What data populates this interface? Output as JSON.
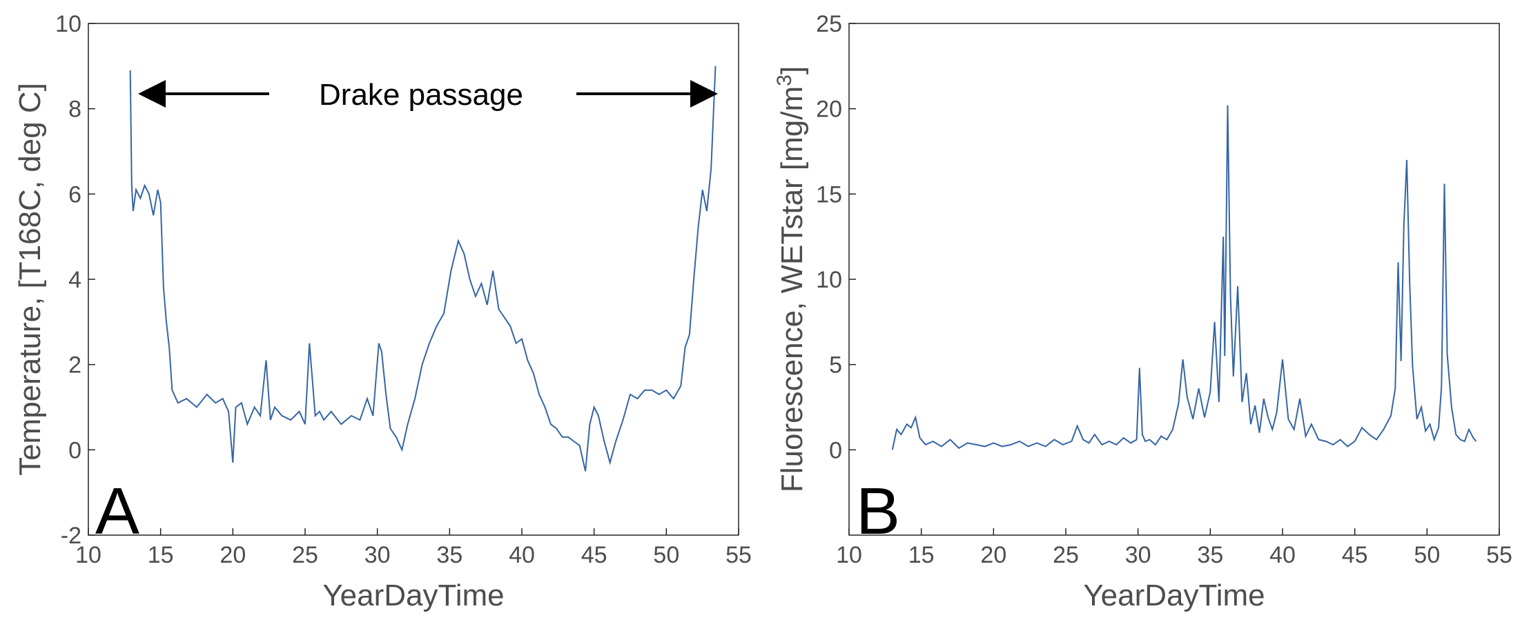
{
  "chart_data": [
    {
      "panel": "A",
      "type": "line",
      "xlabel": "YearDayTime",
      "ylabel": "Temperature, [T168C, deg C]",
      "xlim": [
        10,
        55
      ],
      "ylim": [
        -2,
        10
      ],
      "xticks": [
        "10",
        "15",
        "20",
        "25",
        "30",
        "35",
        "40",
        "45",
        "50",
        "55"
      ],
      "yticks": [
        "-2",
        "0",
        "2",
        "4",
        "6",
        "8",
        "10"
      ],
      "annotation": "Drake passage",
      "line_color": "#3465a4",
      "x": [
        12.9,
        13.0,
        13.1,
        13.3,
        13.6,
        13.9,
        14.2,
        14.5,
        14.8,
        15.0,
        15.2,
        15.4,
        15.6,
        15.8,
        16.2,
        16.8,
        17.5,
        18.2,
        18.8,
        19.3,
        19.7,
        20.0,
        20.2,
        20.6,
        21.0,
        21.5,
        21.9,
        22.3,
        22.6,
        22.9,
        23.4,
        24.0,
        24.6,
        25.0,
        25.3,
        25.7,
        26.0,
        26.3,
        26.8,
        27.5,
        28.2,
        28.8,
        29.3,
        29.7,
        30.1,
        30.3,
        30.6,
        30.9,
        31.3,
        31.7,
        32.1,
        32.6,
        33.1,
        33.6,
        34.1,
        34.6,
        35.1,
        35.6,
        36.0,
        36.4,
        36.8,
        37.2,
        37.6,
        38.0,
        38.4,
        38.8,
        39.2,
        39.6,
        40.0,
        40.4,
        40.8,
        41.2,
        41.6,
        42.0,
        42.4,
        42.8,
        43.2,
        43.6,
        44.0,
        44.4,
        44.7,
        45.0,
        45.3,
        45.7,
        46.1,
        46.5,
        47.0,
        47.5,
        48.0,
        48.5,
        49.0,
        49.5,
        50.0,
        50.5,
        51.0,
        51.3,
        51.6,
        51.9,
        52.2,
        52.5,
        52.8,
        53.1,
        53.4
      ],
      "y": [
        8.9,
        6.2,
        5.6,
        6.1,
        5.9,
        6.2,
        6.0,
        5.5,
        6.1,
        5.8,
        3.8,
        3.0,
        2.4,
        1.4,
        1.1,
        1.2,
        1.0,
        1.3,
        1.1,
        1.2,
        0.9,
        -0.3,
        1.0,
        1.1,
        0.6,
        1.0,
        0.8,
        2.1,
        0.7,
        1.0,
        0.8,
        0.7,
        0.9,
        0.6,
        2.5,
        0.8,
        0.9,
        0.7,
        0.9,
        0.6,
        0.8,
        0.7,
        1.2,
        0.8,
        2.5,
        2.3,
        1.3,
        0.5,
        0.3,
        0.0,
        0.6,
        1.2,
        2.0,
        2.5,
        2.9,
        3.2,
        4.2,
        4.9,
        4.6,
        4.0,
        3.6,
        3.9,
        3.4,
        4.2,
        3.3,
        3.1,
        2.9,
        2.5,
        2.6,
        2.1,
        1.8,
        1.3,
        1.0,
        0.6,
        0.5,
        0.3,
        0.3,
        0.2,
        0.1,
        -0.5,
        0.6,
        1.0,
        0.8,
        0.2,
        -0.3,
        0.2,
        0.7,
        1.3,
        1.2,
        1.4,
        1.4,
        1.3,
        1.4,
        1.2,
        1.5,
        2.4,
        2.7,
        4.0,
        5.2,
        6.1,
        5.6,
        6.6,
        9.0
      ],
      "legend": "none",
      "grid": false
    },
    {
      "panel": "B",
      "type": "line",
      "xlabel": "YearDayTime",
      "ylabel": "Fluorescence, WETstar [mg/m3]",
      "xlim": [
        10,
        55
      ],
      "ylim": [
        -5,
        25
      ],
      "xticks": [
        "10",
        "15",
        "20",
        "25",
        "30",
        "35",
        "40",
        "45",
        "50",
        "55"
      ],
      "yticks": [
        "0",
        "5",
        "10",
        "15",
        "20",
        "25"
      ],
      "line_color": "#3465a4",
      "x": [
        13.0,
        13.3,
        13.6,
        14.0,
        14.3,
        14.6,
        14.9,
        15.3,
        15.8,
        16.4,
        17.0,
        17.6,
        18.2,
        18.8,
        19.4,
        20.0,
        20.6,
        21.2,
        21.8,
        22.4,
        23.0,
        23.6,
        24.2,
        24.8,
        25.4,
        25.8,
        26.2,
        26.6,
        27.0,
        27.5,
        28.0,
        28.5,
        29.0,
        29.5,
        29.9,
        30.1,
        30.3,
        30.5,
        30.8,
        31.2,
        31.6,
        32.0,
        32.4,
        32.8,
        33.1,
        33.4,
        33.8,
        34.2,
        34.6,
        35.0,
        35.3,
        35.6,
        35.9,
        36.0,
        36.2,
        36.4,
        36.6,
        36.9,
        37.2,
        37.5,
        37.8,
        38.1,
        38.4,
        38.7,
        39.0,
        39.3,
        39.6,
        40.0,
        40.4,
        40.8,
        41.2,
        41.6,
        42.0,
        42.5,
        43.0,
        43.5,
        44.0,
        44.5,
        45.0,
        45.5,
        46.0,
        46.5,
        47.0,
        47.5,
        47.8,
        48.0,
        48.2,
        48.4,
        48.6,
        48.8,
        49.0,
        49.3,
        49.6,
        49.9,
        50.2,
        50.5,
        50.8,
        51.0,
        51.2,
        51.4,
        51.7,
        52.0,
        52.3,
        52.6,
        52.9,
        53.2,
        53.4
      ],
      "y": [
        0.0,
        1.2,
        0.9,
        1.5,
        1.3,
        1.9,
        0.7,
        0.3,
        0.5,
        0.2,
        0.6,
        0.1,
        0.4,
        0.3,
        0.2,
        0.4,
        0.2,
        0.3,
        0.5,
        0.2,
        0.4,
        0.2,
        0.6,
        0.3,
        0.5,
        1.4,
        0.6,
        0.4,
        0.9,
        0.3,
        0.5,
        0.3,
        0.7,
        0.4,
        0.6,
        4.8,
        0.9,
        0.5,
        0.6,
        0.3,
        0.8,
        0.6,
        1.2,
        2.7,
        5.3,
        3.1,
        1.8,
        3.6,
        1.9,
        3.4,
        7.5,
        2.8,
        12.5,
        5.5,
        20.2,
        9.0,
        4.3,
        9.6,
        2.8,
        4.5,
        1.5,
        2.6,
        1.0,
        3.0,
        1.9,
        1.2,
        2.2,
        5.3,
        1.8,
        1.2,
        3.0,
        0.8,
        1.5,
        0.6,
        0.5,
        0.3,
        0.6,
        0.2,
        0.5,
        1.3,
        0.9,
        0.6,
        1.2,
        2.0,
        3.6,
        11.0,
        5.2,
        13.2,
        17.0,
        9.8,
        4.9,
        1.8,
        2.5,
        1.1,
        1.5,
        0.6,
        1.3,
        3.7,
        15.6,
        5.6,
        2.5,
        0.9,
        0.6,
        0.5,
        1.2,
        0.7,
        0.5
      ],
      "legend": "none",
      "grid": false
    }
  ]
}
